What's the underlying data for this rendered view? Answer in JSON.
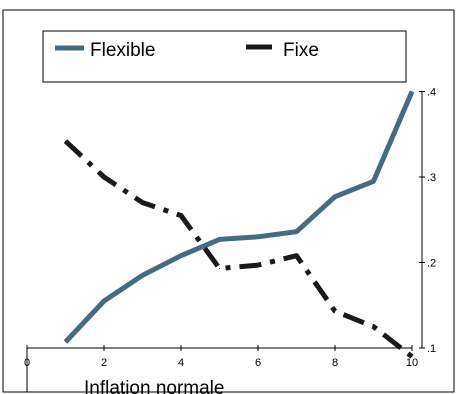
{
  "chart_data": {
    "type": "line",
    "xlabel": "Inflation normale",
    "ylabel": "",
    "title": "",
    "xlim": [
      0,
      10
    ],
    "ylim": [
      0.1,
      0.4
    ],
    "x_ticks": [
      0,
      2,
      4,
      6,
      8,
      10
    ],
    "x_tick_labels": [
      "0",
      "2",
      "4",
      "6",
      "8",
      "10"
    ],
    "y_ticks": [
      0.1,
      0.2,
      0.3,
      0.4
    ],
    "y_tick_labels": [
      ".1",
      ".2",
      ".3",
      ".4"
    ],
    "y_axis_side": "right",
    "grid": false,
    "legend_position": "top",
    "x": [
      1,
      2,
      3,
      4,
      5,
      6,
      7,
      8,
      9,
      10
    ],
    "series": [
      {
        "name": "Flexible",
        "color": "#456b80",
        "style": "solid",
        "values": [
          0.107,
          0.155,
          0.185,
          0.208,
          0.227,
          0.23,
          0.236,
          0.277,
          0.295,
          0.4
        ]
      },
      {
        "name": "Fixe",
        "color": "#1a1a1a",
        "style": "dash-dot",
        "values": [
          0.342,
          0.3,
          0.27,
          0.255,
          0.193,
          0.197,
          0.208,
          0.143,
          0.125,
          0.09
        ]
      }
    ]
  }
}
